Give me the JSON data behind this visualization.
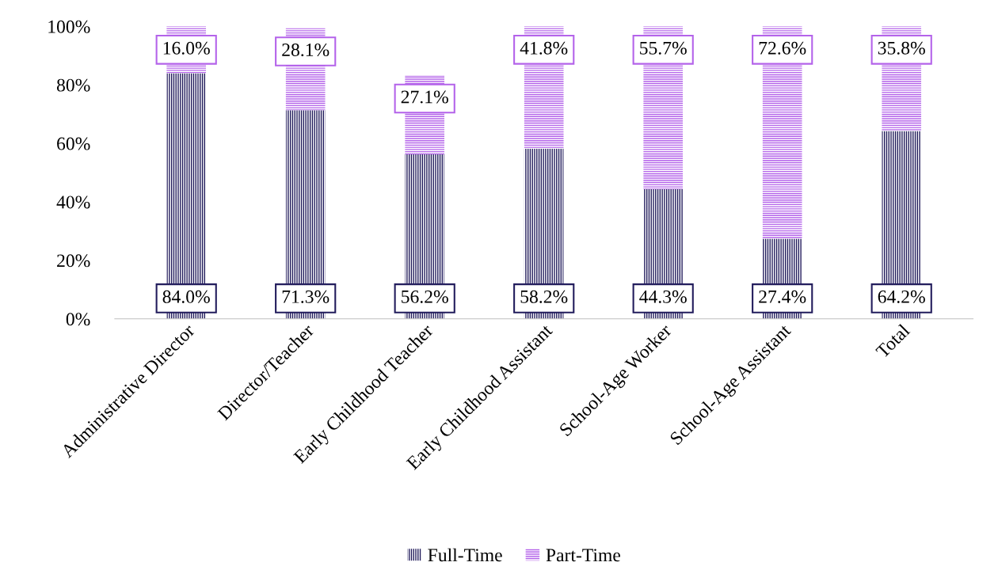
{
  "chart_data": {
    "type": "bar",
    "stacked": true,
    "categories": [
      "Administrative Director",
      "Director/Teacher",
      "Early Childhood Teacher",
      "Early Childhood Assistant",
      "School-Age Worker",
      "School-Age Assistant",
      "Total"
    ],
    "series": [
      {
        "name": "Full-Time",
        "color": "#221c5c",
        "values": [
          84.0,
          71.3,
          56.2,
          58.2,
          44.3,
          27.4,
          64.2
        ],
        "value_labels": [
          "84.0%",
          "71.3%",
          "56.2%",
          "58.2%",
          "44.3%",
          "27.4%",
          "64.2%"
        ]
      },
      {
        "name": "Part-Time",
        "color": "#b463ea",
        "values": [
          16.0,
          28.1,
          27.1,
          41.8,
          55.7,
          72.6,
          35.8
        ],
        "value_labels": [
          "16.0%",
          "28.1%",
          "27.1%",
          "41.8%",
          "55.7%",
          "72.6%",
          "35.8%"
        ]
      }
    ],
    "ylim": [
      0,
      100
    ],
    "yticks": [
      {
        "value": 0,
        "label": "0%"
      },
      {
        "value": 20,
        "label": "20%"
      },
      {
        "value": 40,
        "label": "40%"
      },
      {
        "value": 60,
        "label": "60%"
      },
      {
        "value": 80,
        "label": "80%"
      },
      {
        "value": 100,
        "label": "100%"
      }
    ],
    "grid": false,
    "legend": "bottom"
  }
}
